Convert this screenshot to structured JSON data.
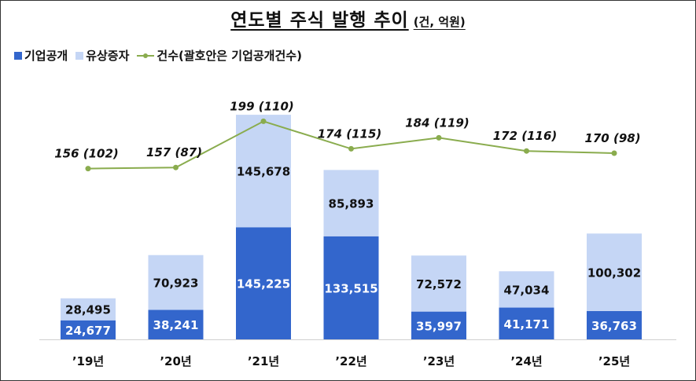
{
  "chart_data": {
    "type": "bar",
    "title": "연도별 주식 발행 추이",
    "unit": "(건, 억원)",
    "categories": [
      "'19년",
      "'20년",
      "'21년",
      "'22년",
      "'23년",
      "'24년",
      "'25년"
    ],
    "series": [
      {
        "name": "기업공개",
        "values": [
          24677,
          38241,
          145225,
          133515,
          35997,
          41171,
          36763
        ],
        "labels": [
          "24,677",
          "38,241",
          "145,225",
          "133,515",
          "35,997",
          "41,171",
          "36,763"
        ],
        "color": "#3366cc"
      },
      {
        "name": "유상증자",
        "values": [
          28495,
          70923,
          145678,
          85893,
          72572,
          47034,
          100302
        ],
        "labels": [
          "28,495",
          "70,923",
          "145,678",
          "85,893",
          "72,572",
          "47,034",
          "100,302"
        ],
        "color": "#c5d6f5"
      }
    ],
    "line": {
      "name": "건수(괄호안은 기업공개건수)",
      "values": [
        156,
        157,
        199,
        174,
        184,
        172,
        170
      ],
      "ipo_counts": [
        102,
        87,
        110,
        115,
        119,
        116,
        98
      ],
      "labels": [
        "156 (102)",
        "157 (87)",
        "199 (110)",
        "174 (115)",
        "184 (119)",
        "172 (116)",
        "170 (98)"
      ],
      "color": "#8aac4e"
    },
    "legend_position": "top-left",
    "grid": false
  }
}
